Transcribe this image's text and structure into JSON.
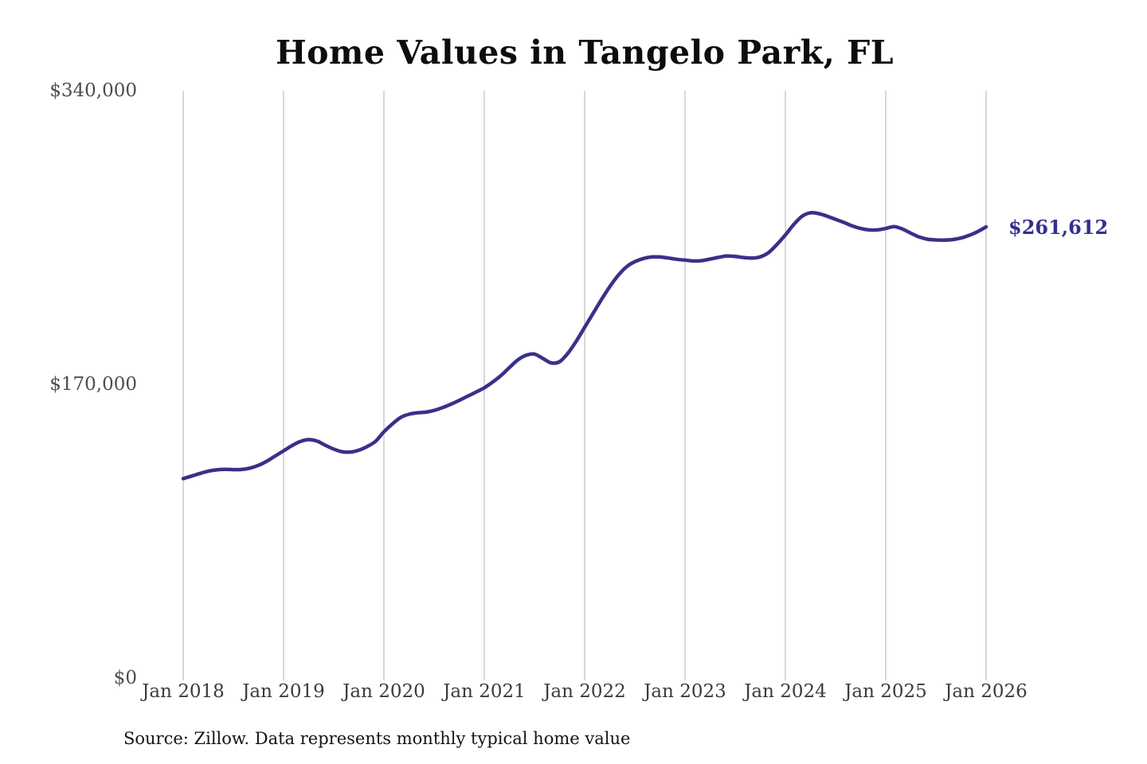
{
  "page": {
    "title": "Home Values in Tangelo Park, FL",
    "end_label": "$261,612",
    "source": "Source: Zillow. Data represents monthly typical home value"
  },
  "chart_data": {
    "type": "line",
    "title": "Home Values in Tangelo Park, FL",
    "x_tick_labels": [
      "Jan 2018",
      "Jan 2019",
      "Jan 2020",
      "Jan 2021",
      "Jan 2022",
      "Jan 2023",
      "Jan 2024",
      "Jan 2025",
      "Jan 2026"
    ],
    "y_tick_labels": [
      "$0",
      "$170,000",
      "$340,000"
    ],
    "y_tick_values": [
      0,
      170000,
      340000
    ],
    "ylim": [
      0,
      340000
    ],
    "grid": "vertical-yearly",
    "gridline_color": "#cbcbcb",
    "legend": "none",
    "x_start": "2018-01",
    "x_end": "2026-01",
    "end_value": 261612,
    "series": [
      {
        "name": "Monthly typical home value",
        "color": "#383188",
        "monthly_values": [
          115900,
          117400,
          118900,
          120200,
          121000,
          121300,
          121100,
          121200,
          122000,
          123600,
          126000,
          129000,
          132000,
          135000,
          137400,
          138500,
          137600,
          135200,
          133000,
          131500,
          131300,
          132400,
          134500,
          137500,
          143000,
          147500,
          151300,
          153200,
          154000,
          154400,
          155400,
          157000,
          159000,
          161200,
          163600,
          166000,
          168500,
          171800,
          175600,
          180200,
          184600,
          187300,
          188000,
          185500,
          182900,
          183600,
          188500,
          195500,
          203500,
          211500,
          219500,
          227000,
          233500,
          238500,
          241500,
          243300,
          244200,
          244200,
          243600,
          242900,
          242400,
          241900,
          242100,
          243000,
          244000,
          244800,
          244500,
          243900,
          243600,
          244300,
          246800,
          251500,
          257000,
          263000,
          267800,
          269800,
          269300,
          267800,
          266000,
          264200,
          262200,
          260700,
          259900,
          259900,
          260700,
          261800,
          260400,
          258000,
          255800,
          254500,
          254100,
          254000,
          254300,
          255200,
          256800,
          258900,
          261612
        ]
      }
    ]
  }
}
